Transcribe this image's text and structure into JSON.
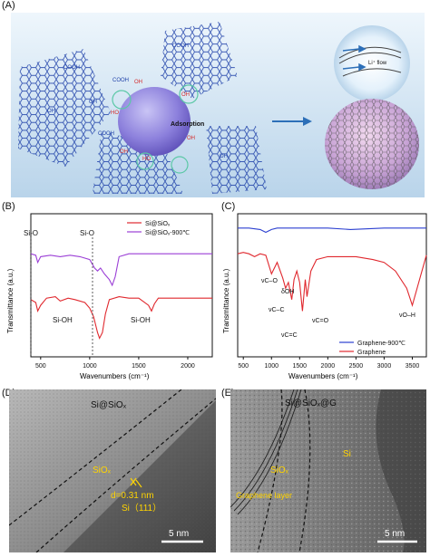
{
  "figure": {
    "panel_labels": {
      "a": "(A)",
      "b": "(B)",
      "c": "(C)",
      "d": "(D)",
      "e": "(E)"
    }
  },
  "panel_a": {
    "groups_cooh": "COOH",
    "groups_oh": "OH",
    "groups_ho": "HO",
    "adsorption": "Adsorption",
    "li_flow": "Li⁺ flow",
    "colors": {
      "background": "#cfe3f2",
      "graphene": "#1d3fa8",
      "sphere": "#7a6fd6",
      "arrow": "#2c6fb8"
    }
  },
  "panel_b": {
    "ylabel": "Transmittance (a.u.)",
    "xlabel": "Wavenumbers (cm⁻¹)",
    "xticks": [
      "500",
      "1000",
      "1500",
      "2000"
    ],
    "annotations": {
      "sio_1": "Si-O",
      "sio_2": "Si-O",
      "sioh_1": "Si-OH",
      "sioh_2": "Si-OH"
    }
  },
  "panel_c": {
    "ylabel": "Transmittance (a.u.)",
    "xlabel": "Wavenumbers (cm⁻¹)",
    "xticks": [
      "500",
      "1000",
      "1500",
      "2000",
      "2500",
      "3000",
      "3500"
    ],
    "annotations": {
      "co": "νC–O",
      "oh_d": "δOH",
      "cc": "νC–C",
      "co2": "νC=O",
      "cc2": "νC=C",
      "oh": "νO–H"
    }
  },
  "panel_d": {
    "title": "Si@SiOₓ",
    "siox": "SiOₓ",
    "dspacing": "d=0.31 nm",
    "plane": "Si（111）",
    "scale": "5 nm"
  },
  "panel_e": {
    "title": "Si@SiOₓ@G",
    "si": "Si",
    "siox": "SiOₓ",
    "graphene": "Graphene layer",
    "scale": "5 nm"
  },
  "chart_data": [
    {
      "type": "line",
      "panel": "B",
      "xlabel": "Wavenumbers (cm⁻¹)",
      "ylabel": "Transmittance (a.u.)",
      "xlim": [
        400,
        2250
      ],
      "legend_position": "top-right",
      "series": [
        {
          "name": "Si@SiOₓ",
          "color": "#e0282e",
          "x": [
            400,
            450,
            470,
            500,
            560,
            650,
            700,
            780,
            850,
            950,
            1000,
            1040,
            1080,
            1100,
            1130,
            1160,
            1200,
            1300,
            1400,
            1500,
            1600,
            1630,
            1660,
            1700,
            1800,
            2000,
            2250
          ],
          "y": [
            0.4,
            0.38,
            0.32,
            0.36,
            0.41,
            0.42,
            0.39,
            0.41,
            0.4,
            0.38,
            0.34,
            0.28,
            0.17,
            0.13,
            0.17,
            0.3,
            0.4,
            0.42,
            0.41,
            0.41,
            0.36,
            0.32,
            0.37,
            0.41,
            0.41,
            0.41,
            0.41
          ]
        },
        {
          "name": "Si@SiOₓ-900℃",
          "color": "#9b3fd6",
          "x": [
            400,
            450,
            470,
            500,
            600,
            700,
            800,
            900,
            1000,
            1050,
            1080,
            1110,
            1150,
            1200,
            1230,
            1260,
            1300,
            1400,
            1600,
            1800,
            2000,
            2250
          ],
          "y": [
            0.72,
            0.71,
            0.66,
            0.7,
            0.71,
            0.7,
            0.71,
            0.7,
            0.68,
            0.62,
            0.6,
            0.62,
            0.58,
            0.54,
            0.5,
            0.56,
            0.7,
            0.72,
            0.72,
            0.72,
            0.72,
            0.72
          ]
        }
      ]
    },
    {
      "type": "line",
      "panel": "C",
      "xlabel": "Wavenumbers (cm⁻¹)",
      "ylabel": "Transmittance (a.u.)",
      "xlim": [
        400,
        3750
      ],
      "legend_position": "bottom-right",
      "series": [
        {
          "name": "Graphene-900℃",
          "color": "#2b3fd0",
          "x": [
            400,
            600,
            800,
            900,
            1000,
            1100,
            1300,
            1500,
            1700,
            2000,
            2400,
            3000,
            3500,
            3750
          ],
          "y": [
            0.9,
            0.9,
            0.89,
            0.87,
            0.89,
            0.9,
            0.9,
            0.9,
            0.9,
            0.9,
            0.89,
            0.9,
            0.9,
            0.9
          ]
        },
        {
          "name": "Graphene",
          "color": "#e0282e",
          "x": [
            400,
            500,
            600,
            700,
            800,
            900,
            1000,
            1100,
            1200,
            1250,
            1300,
            1360,
            1400,
            1450,
            1500,
            1550,
            1600,
            1630,
            1700,
            1800,
            2000,
            2500,
            2800,
            3000,
            3200,
            3400,
            3500,
            3600,
            3750
          ],
          "y": [
            0.72,
            0.73,
            0.72,
            0.7,
            0.72,
            0.71,
            0.58,
            0.66,
            0.55,
            0.48,
            0.52,
            0.4,
            0.54,
            0.6,
            0.52,
            0.32,
            0.54,
            0.42,
            0.6,
            0.68,
            0.7,
            0.7,
            0.68,
            0.66,
            0.6,
            0.48,
            0.36,
            0.5,
            0.71
          ]
        }
      ]
    }
  ]
}
